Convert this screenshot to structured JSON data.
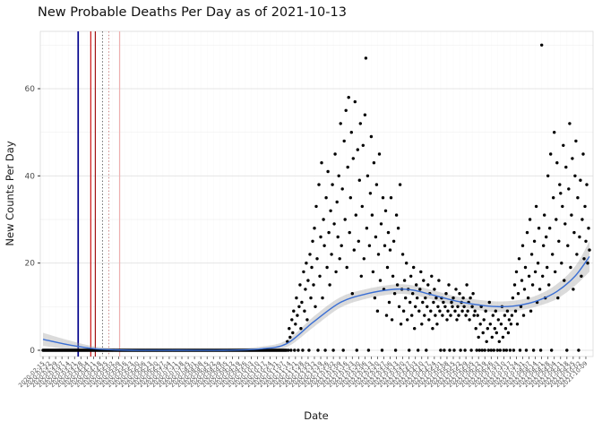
{
  "title": "New Probable Deaths Per Day as of 2021-10-13",
  "chart_data": {
    "type": "scatter",
    "title": "New Probable Deaths Per Day as of 2021-10-13",
    "xlabel": "Date",
    "ylabel": "New Counts Per Day",
    "x_start_date": "2020-02-15",
    "x_end_date": "2021-10-13",
    "x_tick_interval_days": 7,
    "ylim": [
      -1.5,
      73
    ],
    "y_ticks": [
      0,
      20,
      40,
      60
    ],
    "y_minor_ticks": [
      10,
      30,
      50,
      70
    ],
    "grid_major_color": "#e4e4e4",
    "grid_minor_color": "#f0f0f0",
    "grid_vertical_color": "#f8f8f8",
    "panel_border_color": "#d9d9d9",
    "point_color": "#000000",
    "axis_text_color": "#4d4d4d",
    "x_tick_labels": [
      "2020-02-15",
      "2020-02-22",
      "2020-02-29",
      "2020-03-07",
      "2020-03-14",
      "2020-03-21",
      "2020-03-28",
      "2020-04-04",
      "2020-04-11",
      "2020-04-18",
      "2020-04-25",
      "2020-05-02",
      "2020-05-09",
      "2020-05-16",
      "2020-05-23",
      "2020-05-30",
      "2020-06-06",
      "2020-06-13",
      "2020-06-20",
      "2020-06-27",
      "2020-07-04",
      "2020-07-11",
      "2020-07-18",
      "2020-07-25",
      "2020-08-01",
      "2020-08-08",
      "2020-08-15",
      "2020-08-22",
      "2020-08-29",
      "2020-09-05",
      "2020-09-12",
      "2020-09-19",
      "2020-09-26",
      "2020-10-03",
      "2020-10-10",
      "2020-10-17",
      "2020-10-24",
      "2020-10-31",
      "2020-11-07",
      "2020-11-14",
      "2020-11-21",
      "2020-11-28",
      "2020-12-05",
      "2020-12-12",
      "2020-12-19",
      "2020-12-26",
      "2021-01-02",
      "2021-01-09",
      "2021-01-16",
      "2021-01-23",
      "2021-01-30",
      "2021-02-06",
      "2021-02-13",
      "2021-02-20",
      "2021-02-27",
      "2021-03-06",
      "2021-03-13",
      "2021-03-20",
      "2021-03-27",
      "2021-04-03",
      "2021-04-10",
      "2021-04-17",
      "2021-04-24",
      "2021-05-01",
      "2021-05-08",
      "2021-05-15",
      "2021-05-22",
      "2021-05-29",
      "2021-06-05",
      "2021-06-12",
      "2021-06-19",
      "2021-06-26",
      "2021-07-03",
      "2021-07-10",
      "2021-07-17",
      "2021-07-24",
      "2021-07-31",
      "2021-08-07",
      "2021-08-14",
      "2021-08-21",
      "2021-08-28",
      "2021-09-04",
      "2021-09-11",
      "2021-09-18",
      "2021-09-25",
      "2021-10-02",
      "2021-10-09"
    ],
    "daily_values": [
      0,
      0,
      0,
      0,
      0,
      0,
      0,
      0,
      0,
      0,
      0,
      0,
      0,
      0,
      0,
      0,
      0,
      0,
      0,
      0,
      0,
      0,
      0,
      0,
      0,
      0,
      0,
      0,
      0,
      0,
      0,
      0,
      0,
      0,
      0,
      0,
      0,
      0,
      0,
      0,
      0,
      0,
      0,
      0,
      0,
      0,
      0,
      0,
      0,
      0,
      0,
      0,
      0,
      0,
      0,
      0,
      0,
      0,
      0,
      0,
      0,
      0,
      0,
      0,
      0,
      0,
      0,
      0,
      0,
      0,
      0,
      0,
      0,
      0,
      0,
      0,
      0,
      0,
      0,
      0,
      0,
      0,
      0,
      0,
      0,
      0,
      0,
      0,
      0,
      0,
      0,
      0,
      0,
      0,
      0,
      0,
      0,
      0,
      0,
      0,
      0,
      0,
      0,
      0,
      0,
      0,
      0,
      0,
      0,
      0,
      0,
      0,
      0,
      0,
      0,
      0,
      0,
      0,
      0,
      0,
      0,
      0,
      0,
      0,
      0,
      0,
      0,
      0,
      0,
      0,
      0,
      0,
      0,
      0,
      0,
      0,
      0,
      0,
      0,
      0,
      0,
      0,
      0,
      0,
      0,
      0,
      0,
      0,
      0,
      0,
      0,
      0,
      0,
      0,
      0,
      0,
      0,
      0,
      0,
      0,
      0,
      0,
      0,
      0,
      0,
      0,
      0,
      0,
      0,
      0,
      0,
      0,
      0,
      0,
      0,
      0,
      0,
      0,
      0,
      0,
      0,
      0,
      0,
      0,
      0,
      0,
      0,
      0,
      0,
      0,
      0,
      0,
      0,
      0,
      0,
      0,
      0,
      0,
      0,
      0,
      0,
      0,
      0,
      0,
      0,
      0,
      0,
      0,
      0,
      0,
      0,
      0,
      0,
      0,
      0,
      0,
      0,
      0,
      0,
      0,
      0,
      0,
      0,
      0,
      0,
      0,
      0,
      0,
      0,
      0,
      0,
      0,
      0,
      0,
      0,
      0,
      0,
      0,
      0,
      0,
      0,
      0,
      0,
      0,
      0,
      0,
      0,
      0,
      0,
      0,
      0,
      0,
      0,
      0,
      0,
      0,
      0,
      0,
      0,
      0,
      0,
      0,
      0,
      0,
      0,
      0,
      0,
      0,
      0,
      0,
      0,
      2,
      0,
      5,
      3,
      0,
      7,
      4,
      9,
      0,
      6,
      12,
      8,
      0,
      10,
      15,
      5,
      11,
      0,
      18,
      9,
      14,
      20,
      7,
      16,
      0,
      22,
      12,
      19,
      25,
      15,
      28,
      10,
      33,
      21,
      0,
      38,
      17,
      26,
      43,
      12,
      30,
      24,
      0,
      35,
      19,
      41,
      27,
      15,
      32,
      22,
      38,
      0,
      29,
      45,
      18,
      34,
      26,
      40,
      21,
      52,
      24,
      37,
      0,
      48,
      30,
      55,
      19,
      42,
      58,
      27,
      35,
      50,
      13,
      44,
      23,
      57,
      31,
      0,
      46,
      25,
      39,
      52,
      17,
      33,
      47,
      21,
      54,
      67,
      28,
      40,
      0,
      24,
      36,
      49,
      31,
      18,
      43,
      12,
      26,
      38,
      9,
      22,
      45,
      16,
      29,
      0,
      35,
      14,
      24,
      32,
      8,
      19,
      27,
      11,
      23,
      35,
      7,
      17,
      25,
      13,
      0,
      31,
      15,
      28,
      10,
      38,
      6,
      14,
      22,
      9,
      16,
      12,
      20,
      7,
      14,
      0,
      11,
      17,
      8,
      13,
      19,
      5,
      10,
      15,
      12,
      0,
      9,
      14,
      18,
      6,
      11,
      16,
      8,
      12,
      0,
      10,
      15,
      7,
      13,
      9,
      17,
      5,
      11,
      14,
      8,
      12,
      6,
      10,
      16,
      9,
      0,
      12,
      8,
      11,
      0,
      10,
      13,
      7,
      9,
      15,
      0,
      8,
      11,
      10,
      12,
      0,
      9,
      14,
      7,
      10,
      8,
      13,
      0,
      11,
      9,
      12,
      10,
      0,
      8,
      15,
      9,
      11,
      7,
      12,
      0,
      10,
      13,
      8,
      9,
      5,
      0,
      8,
      3,
      0,
      6,
      10,
      0,
      4,
      7,
      0,
      9,
      2,
      5,
      0,
      11,
      6,
      0,
      3,
      8,
      0,
      5,
      9,
      4,
      0,
      7,
      2,
      0,
      6,
      10,
      3,
      0,
      8,
      5,
      0,
      9,
      4,
      7,
      0,
      6,
      8,
      12,
      0,
      15,
      9,
      18,
      6,
      13,
      21,
      0,
      10,
      16,
      24,
      8,
      14,
      19,
      0,
      27,
      12,
      17,
      30,
      9,
      22,
      15,
      0,
      25,
      18,
      33,
      11,
      20,
      28,
      14,
      0,
      70,
      17,
      24,
      31,
      12,
      26,
      19,
      40,
      15,
      28,
      45,
      0,
      22,
      35,
      50,
      18,
      30,
      43,
      12,
      25,
      38,
      36,
      20,
      33,
      47,
      16,
      29,
      42,
      0,
      24,
      37,
      52,
      19,
      31,
      44,
      14,
      27,
      40,
      48,
      22,
      35,
      0,
      26,
      39,
      17,
      30,
      45,
      21,
      33,
      25,
      38,
      20,
      28,
      23
    ],
    "smooth_line": {
      "color": "#3b6fd4",
      "width": 1.4,
      "days": [
        0,
        30,
        60,
        100,
        150,
        200,
        240,
        270,
        300,
        330,
        360,
        390,
        410,
        430,
        460,
        490,
        510,
        530,
        550,
        570,
        590,
        606
      ],
      "values": [
        2.5,
        1.2,
        0.3,
        0,
        0,
        0,
        0.3,
        1.5,
        6.5,
        11,
        13,
        14,
        13.8,
        12.8,
        11.2,
        10.2,
        10,
        10.4,
        11.5,
        13.5,
        17,
        21.5
      ]
    },
    "ci_band": {
      "color": "#999999",
      "opacity": 0.35,
      "days": [
        0,
        30,
        60,
        100,
        150,
        200,
        240,
        270,
        300,
        330,
        360,
        390,
        410,
        430,
        460,
        490,
        510,
        530,
        550,
        570,
        590,
        606
      ],
      "lower": [
        1,
        0.2,
        0,
        0,
        0,
        0,
        0,
        0.7,
        5.3,
        9.8,
        11.9,
        12.9,
        12.7,
        11.7,
        10.1,
        9,
        8.8,
        9.2,
        10.2,
        11.8,
        14.8,
        18
      ],
      "upper": [
        4,
        2.2,
        0.8,
        0.3,
        0.3,
        0.3,
        0.8,
        2.3,
        7.7,
        12.2,
        14.1,
        15.1,
        14.9,
        13.9,
        12.3,
        11.4,
        11.2,
        11.6,
        12.8,
        15.2,
        19.2,
        25
      ]
    },
    "vlines": [
      {
        "day": 39,
        "color": "#00008b",
        "style": "solid",
        "width": 1.7
      },
      {
        "day": 53,
        "color": "#cc2222",
        "style": "solid",
        "width": 1.3
      },
      {
        "day": 58,
        "color": "#990000",
        "style": "solid",
        "width": 1.1
      },
      {
        "day": 66,
        "color": "#666666",
        "style": "dotted",
        "width": 1
      },
      {
        "day": 73,
        "color": "#cc8888",
        "style": "dotted",
        "width": 1
      },
      {
        "day": 85,
        "color": "#eeb0b0",
        "style": "solid",
        "width": 1.2
      }
    ]
  }
}
